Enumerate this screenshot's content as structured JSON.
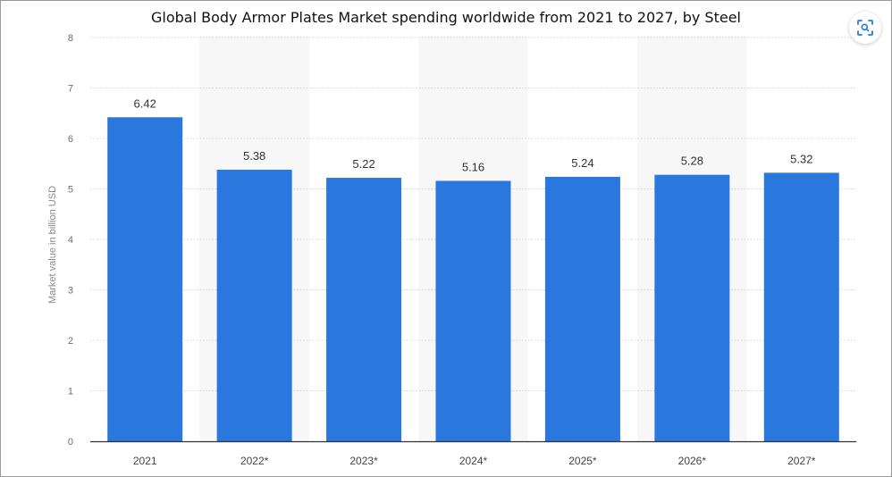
{
  "title": "Global Body Armor Plates Market spending worldwide from 2021 to 2027, by Steel",
  "zoom_icon": "scan-zoom-icon",
  "colors": {
    "bar": "#2a77dd",
    "band": "#f7f7f7",
    "grid": "#d4d4d4",
    "axis": "#333333"
  },
  "chart_data": {
    "type": "bar",
    "title": "Global Body Armor Plates Market spending worldwide from 2021 to 2027, by Steel",
    "xlabel": "",
    "ylabel": "Market value in billion USD",
    "categories": [
      "2021",
      "2022*",
      "2023*",
      "2024*",
      "2025*",
      "2026*",
      "2027*"
    ],
    "values": [
      6.42,
      5.38,
      5.22,
      5.16,
      5.24,
      5.28,
      5.32
    ],
    "value_labels": [
      "6.42",
      "5.38",
      "5.22",
      "5.16",
      "5.24",
      "5.28",
      "5.32"
    ],
    "ylim": [
      0,
      8
    ],
    "yticks": [
      "0",
      "1",
      "2",
      "3",
      "4",
      "5",
      "6",
      "7",
      "8"
    ],
    "grid": true,
    "legend": "none"
  }
}
